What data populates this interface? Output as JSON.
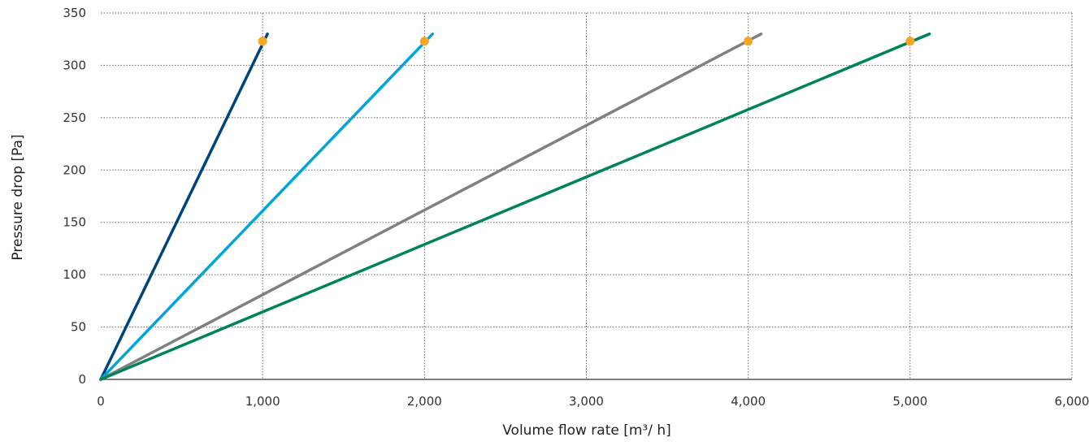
{
  "chart_data": {
    "type": "line",
    "xlabel": "Volume flow rate [m³/ h]",
    "ylabel": "Pressure drop [Pa]",
    "xlim": [
      0,
      6000
    ],
    "ylim": [
      0,
      350
    ],
    "x_ticks": [
      0,
      1000,
      2000,
      3000,
      4000,
      5000,
      6000
    ],
    "x_tick_labels": [
      "0",
      "1,000",
      "2,000",
      "3,000",
      "4,000",
      "5,000",
      "6,000"
    ],
    "y_ticks": [
      0,
      50,
      100,
      150,
      200,
      250,
      300,
      350
    ],
    "y_tick_labels": [
      "0",
      "50",
      "100",
      "150",
      "200",
      "250",
      "300",
      "350"
    ],
    "grid": true,
    "series": [
      {
        "color": "#00447c",
        "x": [
          0,
          1030
        ],
        "y": [
          0,
          330
        ]
      },
      {
        "color": "#00a6d9",
        "x": [
          0,
          2050
        ],
        "y": [
          0,
          330
        ]
      },
      {
        "color": "#808080",
        "x": [
          0,
          4080
        ],
        "y": [
          0,
          330
        ]
      },
      {
        "color": "#008454",
        "x": [
          0,
          5120
        ],
        "y": [
          0,
          330
        ]
      }
    ],
    "markers": {
      "color": "#f6a623",
      "points": [
        {
          "x": 1000,
          "y": 323
        },
        {
          "x": 2000,
          "y": 323
        },
        {
          "x": 4000,
          "y": 323
        },
        {
          "x": 5000,
          "y": 323
        }
      ]
    }
  }
}
